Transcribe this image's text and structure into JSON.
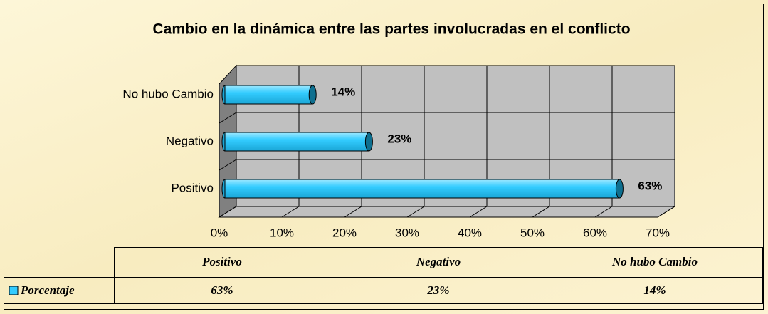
{
  "chart_data": {
    "type": "bar",
    "orientation": "horizontal",
    "title": "Cambio en la dinámica entre las partes involucradas en el conflicto",
    "categories": [
      "Positivo",
      "Negativo",
      "No hubo Cambio"
    ],
    "series": [
      {
        "name": "Porcentaje",
        "color": "#33ccff",
        "values": [
          63,
          23,
          14
        ],
        "value_labels": [
          "63%",
          "23%",
          "14%"
        ]
      }
    ],
    "xlim": [
      0,
      70
    ],
    "xticks": [
      {
        "value": 0,
        "label": "0%"
      },
      {
        "value": 10,
        "label": "10%"
      },
      {
        "value": 20,
        "label": "20%"
      },
      {
        "value": 30,
        "label": "30%"
      },
      {
        "value": 40,
        "label": "40%"
      },
      {
        "value": 50,
        "label": "50%"
      },
      {
        "value": 60,
        "label": "60%"
      },
      {
        "value": 70,
        "label": "70%"
      }
    ],
    "grid": true
  }
}
